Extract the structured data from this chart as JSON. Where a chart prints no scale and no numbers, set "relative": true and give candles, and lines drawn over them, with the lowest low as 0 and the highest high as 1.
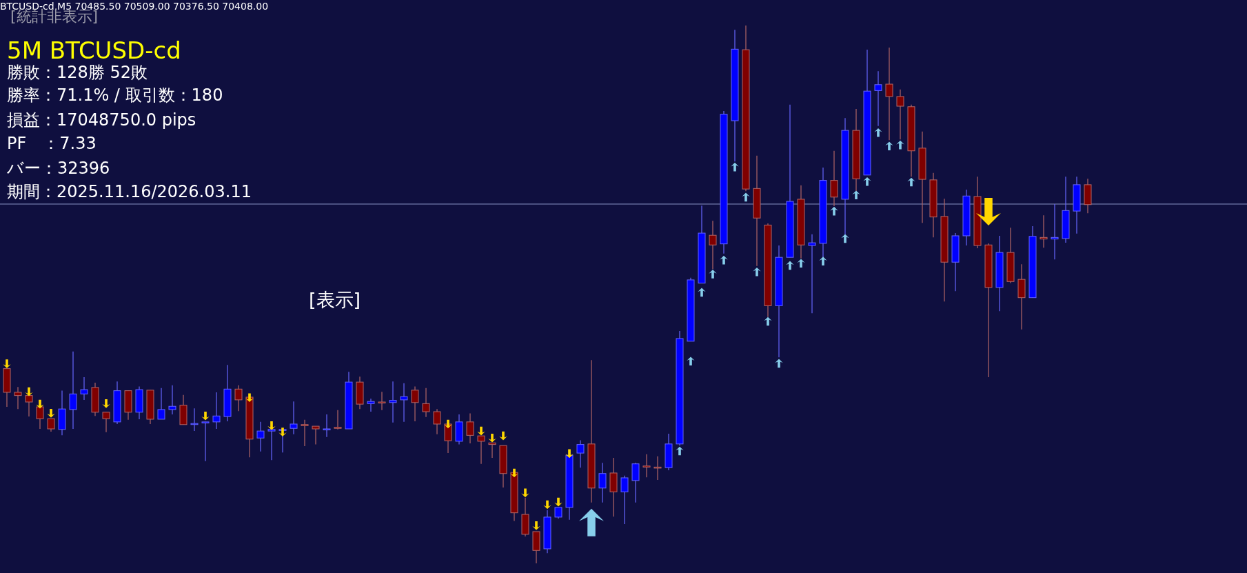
{
  "chart_data": {
    "type": "candlestick",
    "relative": true,
    "title": "5M BTCUSD-cd",
    "annotations": [
      "BTCUSD-cd,M5  70485.50 70509.00 70376.50 70408.00",
      "[統計非表示]",
      "勝敗：128勝 52敗",
      "勝率：71.1%  /  取引数：180",
      "損益：17048750.0 pips",
      "PF　：7.33",
      "バー：32396",
      "期間：2025.11.16/2026.03.11",
      "[表示]"
    ],
    "categories": [
      null,
      null,
      null,
      null,
      null,
      null,
      null,
      null,
      null,
      null,
      null,
      null,
      null,
      null,
      null,
      null,
      null,
      null,
      null,
      null,
      null,
      null,
      null,
      null,
      null,
      null,
      null,
      null,
      null,
      null,
      null,
      null,
      null,
      null,
      null,
      null,
      null,
      null,
      null,
      null,
      null,
      null,
      null,
      null,
      null,
      null,
      null,
      null,
      null,
      null,
      null,
      null,
      null,
      null,
      null,
      null,
      null,
      null,
      null,
      null,
      null,
      null,
      null,
      null,
      null,
      null,
      null,
      null,
      null,
      null,
      null,
      null,
      null,
      null,
      null,
      null,
      null,
      null,
      null,
      null,
      null,
      null,
      null,
      null,
      null,
      null,
      null,
      null,
      null,
      null,
      null,
      null,
      null,
      null,
      null,
      null,
      null,
      null,
      null
    ],
    "ohlc": [
      [
        0.362,
        0.362,
        0.291,
        0.318
      ],
      [
        0.318,
        0.328,
        0.287,
        0.312
      ],
      [
        0.312,
        0.312,
        0.273,
        0.3
      ],
      [
        0.291,
        0.291,
        0.25,
        0.269
      ],
      [
        0.269,
        0.269,
        0.245,
        0.25
      ],
      [
        0.249,
        0.321,
        0.238,
        0.287
      ],
      [
        0.286,
        0.394,
        0.25,
        0.315
      ],
      [
        0.315,
        0.346,
        0.304,
        0.323
      ],
      [
        0.327,
        0.336,
        0.274,
        0.281
      ],
      [
        0.281,
        0.281,
        0.244,
        0.269
      ],
      [
        0.263,
        0.338,
        0.259,
        0.321
      ],
      [
        0.321,
        0.321,
        0.267,
        0.281
      ],
      [
        0.281,
        0.329,
        0.268,
        0.323
      ],
      [
        0.322,
        0.322,
        0.259,
        0.268
      ],
      [
        0.268,
        0.326,
        0.268,
        0.286
      ],
      [
        0.286,
        0.331,
        0.277,
        0.292
      ],
      [
        0.294,
        0.313,
        0.258,
        0.258
      ],
      [
        0.259,
        0.288,
        0.246,
        0.26
      ],
      [
        0.262,
        0.263,
        0.19,
        0.263
      ],
      [
        0.263,
        0.318,
        0.25,
        0.274
      ],
      [
        0.273,
        0.369,
        0.264,
        0.324
      ],
      [
        0.324,
        0.331,
        0.283,
        0.304
      ],
      [
        0.309,
        0.309,
        0.197,
        0.231
      ],
      [
        0.233,
        0.263,
        0.208,
        0.246
      ],
      [
        0.246,
        0.249,
        0.192,
        0.249
      ],
      [
        0.247,
        0.249,
        0.206,
        0.249
      ],
      [
        0.251,
        0.301,
        0.24,
        0.259
      ],
      [
        0.258,
        0.267,
        0.218,
        0.256
      ],
      [
        0.255,
        0.255,
        0.221,
        0.25
      ],
      [
        0.249,
        0.277,
        0.235,
        0.25
      ],
      [
        0.253,
        0.285,
        0.249,
        0.251
      ],
      [
        0.25,
        0.356,
        0.25,
        0.337
      ],
      [
        0.337,
        0.347,
        0.287,
        0.296
      ],
      [
        0.297,
        0.306,
        0.282,
        0.301
      ],
      [
        0.3,
        0.319,
        0.285,
        0.299
      ],
      [
        0.299,
        0.338,
        0.262,
        0.303
      ],
      [
        0.304,
        0.335,
        0.263,
        0.31
      ],
      [
        0.322,
        0.329,
        0.264,
        0.299
      ],
      [
        0.297,
        0.326,
        0.272,
        0.282
      ],
      [
        0.282,
        0.287,
        0.24,
        0.259
      ],
      [
        0.259,
        0.259,
        0.205,
        0.228
      ],
      [
        0.227,
        0.277,
        0.221,
        0.263
      ],
      [
        0.263,
        0.279,
        0.223,
        0.238
      ],
      [
        0.237,
        0.237,
        0.185,
        0.227
      ],
      [
        0.224,
        0.224,
        0.196,
        0.221
      ],
      [
        0.219,
        0.219,
        0.141,
        0.167
      ],
      [
        0.169,
        0.169,
        0.079,
        0.094
      ],
      [
        0.091,
        0.122,
        0.05,
        0.054
      ],
      [
        0.059,
        0.059,
        0.0,
        0.024
      ],
      [
        0.027,
        0.099,
        0.019,
        0.086
      ],
      [
        0.086,
        0.104,
        0.083,
        0.104
      ],
      [
        0.104,
        0.201,
        0.081,
        0.201
      ],
      [
        0.205,
        0.229,
        0.178,
        0.221
      ],
      [
        0.222,
        0.378,
        0.113,
        0.14
      ],
      [
        0.14,
        0.187,
        0.113,
        0.167
      ],
      [
        0.168,
        0.196,
        0.087,
        0.133
      ],
      [
        0.133,
        0.163,
        0.073,
        0.159
      ],
      [
        0.154,
        0.187,
        0.113,
        0.185
      ],
      [
        0.181,
        0.203,
        0.16,
        0.179
      ],
      [
        0.179,
        0.199,
        0.155,
        0.178
      ],
      [
        0.178,
        0.241,
        0.173,
        0.222
      ],
      [
        0.222,
        0.432,
        0.219,
        0.418
      ],
      [
        0.413,
        0.531,
        0.413,
        0.527
      ],
      [
        0.521,
        0.665,
        0.521,
        0.614
      ],
      [
        0.61,
        0.637,
        0.547,
        0.592
      ],
      [
        0.594,
        0.841,
        0.576,
        0.835
      ],
      [
        0.823,
        0.992,
        0.747,
        0.956
      ],
      [
        0.955,
        1.0,
        0.692,
        0.696
      ],
      [
        0.697,
        0.758,
        0.553,
        0.642
      ],
      [
        0.629,
        0.632,
        0.458,
        0.479
      ],
      [
        0.479,
        0.591,
        0.383,
        0.569
      ],
      [
        0.569,
        0.853,
        0.569,
        0.673
      ],
      [
        0.677,
        0.703,
        0.567,
        0.592
      ],
      [
        0.591,
        0.612,
        0.465,
        0.596
      ],
      [
        0.595,
        0.736,
        0.569,
        0.712
      ],
      [
        0.712,
        0.767,
        0.664,
        0.681
      ],
      [
        0.677,
        0.828,
        0.612,
        0.805
      ],
      [
        0.805,
        0.845,
        0.692,
        0.715
      ],
      [
        0.722,
        0.955,
        0.722,
        0.878
      ],
      [
        0.879,
        0.915,
        0.813,
        0.89
      ],
      [
        0.891,
        0.959,
        0.787,
        0.868
      ],
      [
        0.868,
        0.881,
        0.788,
        0.85
      ],
      [
        0.849,
        0.853,
        0.719,
        0.767
      ],
      [
        0.772,
        0.803,
        0.633,
        0.714
      ],
      [
        0.713,
        0.726,
        0.606,
        0.644
      ],
      [
        0.645,
        0.678,
        0.487,
        0.56
      ],
      [
        0.56,
        0.614,
        0.506,
        0.609
      ],
      [
        0.609,
        0.695,
        0.591,
        0.683
      ],
      [
        0.682,
        0.719,
        0.586,
        0.591
      ],
      [
        0.592,
        0.595,
        0.346,
        0.513
      ],
      [
        0.513,
        0.609,
        0.469,
        0.578
      ],
      [
        0.578,
        0.624,
        0.521,
        0.524
      ],
      [
        0.528,
        0.556,
        0.435,
        0.494
      ],
      [
        0.494,
        0.627,
        0.494,
        0.608
      ],
      [
        0.606,
        0.647,
        0.587,
        0.603
      ],
      [
        0.603,
        0.668,
        0.565,
        0.606
      ],
      [
        0.604,
        0.719,
        0.596,
        0.656
      ],
      [
        0.655,
        0.719,
        0.613,
        0.704
      ],
      [
        0.704,
        0.715,
        0.651,
        0.667
      ]
    ],
    "colors": [
      "#800000",
      "#800000",
      "#800000",
      "#800000",
      "#800000",
      "#0000ff",
      "#0000ff",
      "#0000ff",
      "#800000",
      "#800000",
      "#0000ff",
      "#800000",
      "#0000ff",
      "#800000",
      "#0000ff",
      "#0000ff",
      "#800000",
      "#0000ff",
      "#0000ff",
      "#0000ff",
      "#0000ff",
      "#800000",
      "#800000",
      "#0000ff",
      "#0000ff",
      "#0000ff",
      "#0000ff",
      "#800000",
      "#800000",
      "#0000ff",
      "#800000",
      "#0000ff",
      "#800000",
      "#0000ff",
      "#800000",
      "#0000ff",
      "#0000ff",
      "#800000",
      "#800000",
      "#800000",
      "#800000",
      "#0000ff",
      "#800000",
      "#800000",
      "#800000",
      "#800000",
      "#800000",
      "#800000",
      "#800000",
      "#0000ff",
      "#0000ff",
      "#0000ff",
      "#0000ff",
      "#800000",
      "#0000ff",
      "#800000",
      "#0000ff",
      "#0000ff",
      "#800000",
      "#800000",
      "#0000ff",
      "#0000ff",
      "#0000ff",
      "#0000ff",
      "#800000",
      "#0000ff",
      "#0000ff",
      "#800000",
      "#800000",
      "#800000",
      "#0000ff",
      "#0000ff",
      "#800000",
      "#0000ff",
      "#0000ff",
      "#800000",
      "#0000ff",
      "#800000",
      "#0000ff",
      "#0000ff",
      "#800000",
      "#800000",
      "#800000",
      "#800000",
      "#800000",
      "#800000",
      "#0000ff",
      "#0000ff",
      "#800000",
      "#800000",
      "#0000ff",
      "#800000",
      "#800000",
      "#0000ff",
      "#800000",
      "#0000ff",
      "#0000ff",
      "#0000ff",
      "#800000"
    ],
    "series": [
      {
        "type": "scatter",
        "color": "#ffd700",
        "values": [
          0.371,
          null,
          0.319,
          0.296,
          0.279,
          null,
          null,
          null,
          null,
          0.297,
          null,
          null,
          null,
          null,
          null,
          null,
          null,
          null,
          0.274,
          null,
          null,
          null,
          0.308,
          null,
          0.256,
          0.244,
          null,
          null,
          null,
          null,
          null,
          null,
          null,
          null,
          null,
          null,
          null,
          null,
          null,
          null,
          0.259,
          null,
          null,
          0.246,
          0.233,
          0.237,
          0.168,
          0.131,
          0.07,
          0.109,
          0.114,
          0.204,
          null,
          null,
          null,
          null,
          null,
          null,
          null,
          null,
          null,
          null,
          null,
          null,
          null,
          null,
          null,
          null,
          null,
          null,
          null,
          null,
          null,
          null,
          null,
          null,
          null,
          null,
          null,
          null,
          null,
          null,
          null,
          null,
          null,
          null,
          null,
          null,
          null,
          0.654,
          null,
          null,
          null,
          null,
          null,
          null,
          null,
          null,
          null
        ],
        "sizes": [
          0.1,
          null,
          0.1,
          0.1,
          0.1,
          null,
          null,
          null,
          null,
          0.1,
          null,
          null,
          null,
          null,
          null,
          null,
          null,
          null,
          0.1,
          null,
          null,
          null,
          0.1,
          null,
          0.1,
          0.1,
          null,
          null,
          null,
          null,
          null,
          null,
          null,
          null,
          null,
          null,
          null,
          null,
          null,
          null,
          0.1,
          null,
          null,
          0.1,
          0.1,
          0.1,
          0.1,
          0.1,
          0.1,
          0.1,
          0.1,
          0.1,
          null,
          null,
          null,
          null,
          null,
          null,
          null,
          null,
          null,
          null,
          null,
          null,
          null,
          null,
          null,
          null,
          null,
          null,
          null,
          null,
          null,
          null,
          null,
          null,
          null,
          null,
          null,
          null,
          null,
          null,
          null,
          null,
          null,
          null,
          null,
          null,
          null,
          1,
          null,
          null,
          null,
          null,
          null,
          null,
          null,
          null,
          null
        ]
      },
      {
        "type": "scatter",
        "color": "#87ceeb",
        "values": [
          null,
          null,
          null,
          null,
          null,
          null,
          null,
          null,
          null,
          null,
          null,
          null,
          null,
          null,
          null,
          null,
          null,
          null,
          null,
          null,
          null,
          null,
          null,
          null,
          null,
          null,
          null,
          null,
          null,
          null,
          null,
          null,
          null,
          null,
          null,
          null,
          null,
          null,
          null,
          null,
          null,
          null,
          null,
          null,
          null,
          null,
          null,
          null,
          null,
          null,
          null,
          null,
          null,
          0.076,
          null,
          null,
          null,
          null,
          null,
          null,
          null,
          0.209,
          0.376,
          0.504,
          0.538,
          0.564,
          0.737,
          0.681,
          0.542,
          0.45,
          0.372,
          0.554,
          0.558,
          null,
          0.562,
          0.655,
          0.604,
          0.685,
          0.71,
          0.801,
          0.776,
          0.778,
          0.709,
          null,
          null,
          null,
          null,
          null,
          null,
          null,
          null,
          null,
          null,
          null,
          null,
          null,
          null,
          null,
          null
        ],
        "sizes": [
          null,
          null,
          null,
          null,
          null,
          null,
          null,
          null,
          null,
          null,
          null,
          null,
          null,
          null,
          null,
          null,
          null,
          null,
          null,
          null,
          null,
          null,
          null,
          null,
          null,
          null,
          null,
          null,
          null,
          null,
          null,
          null,
          null,
          null,
          null,
          null,
          null,
          null,
          null,
          null,
          null,
          null,
          null,
          null,
          null,
          null,
          null,
          null,
          null,
          null,
          null,
          null,
          null,
          1,
          null,
          null,
          null,
          null,
          null,
          null,
          null,
          0.1,
          0.1,
          0.1,
          0.1,
          0.1,
          0.1,
          0.1,
          0.1,
          0.1,
          0.1,
          0.1,
          0.1,
          null,
          0.1,
          0.1,
          0.1,
          0.1,
          0.1,
          0.1,
          0.1,
          0.1,
          0.1,
          null,
          null,
          null,
          null,
          null,
          null,
          null,
          null,
          null,
          null,
          null,
          null,
          null,
          null,
          null,
          null
        ]
      }
    ],
    "ref_lines": [
      {
        "axis": "y",
        "value": 0.668,
        "color": "#8c96c8"
      }
    ]
  }
}
